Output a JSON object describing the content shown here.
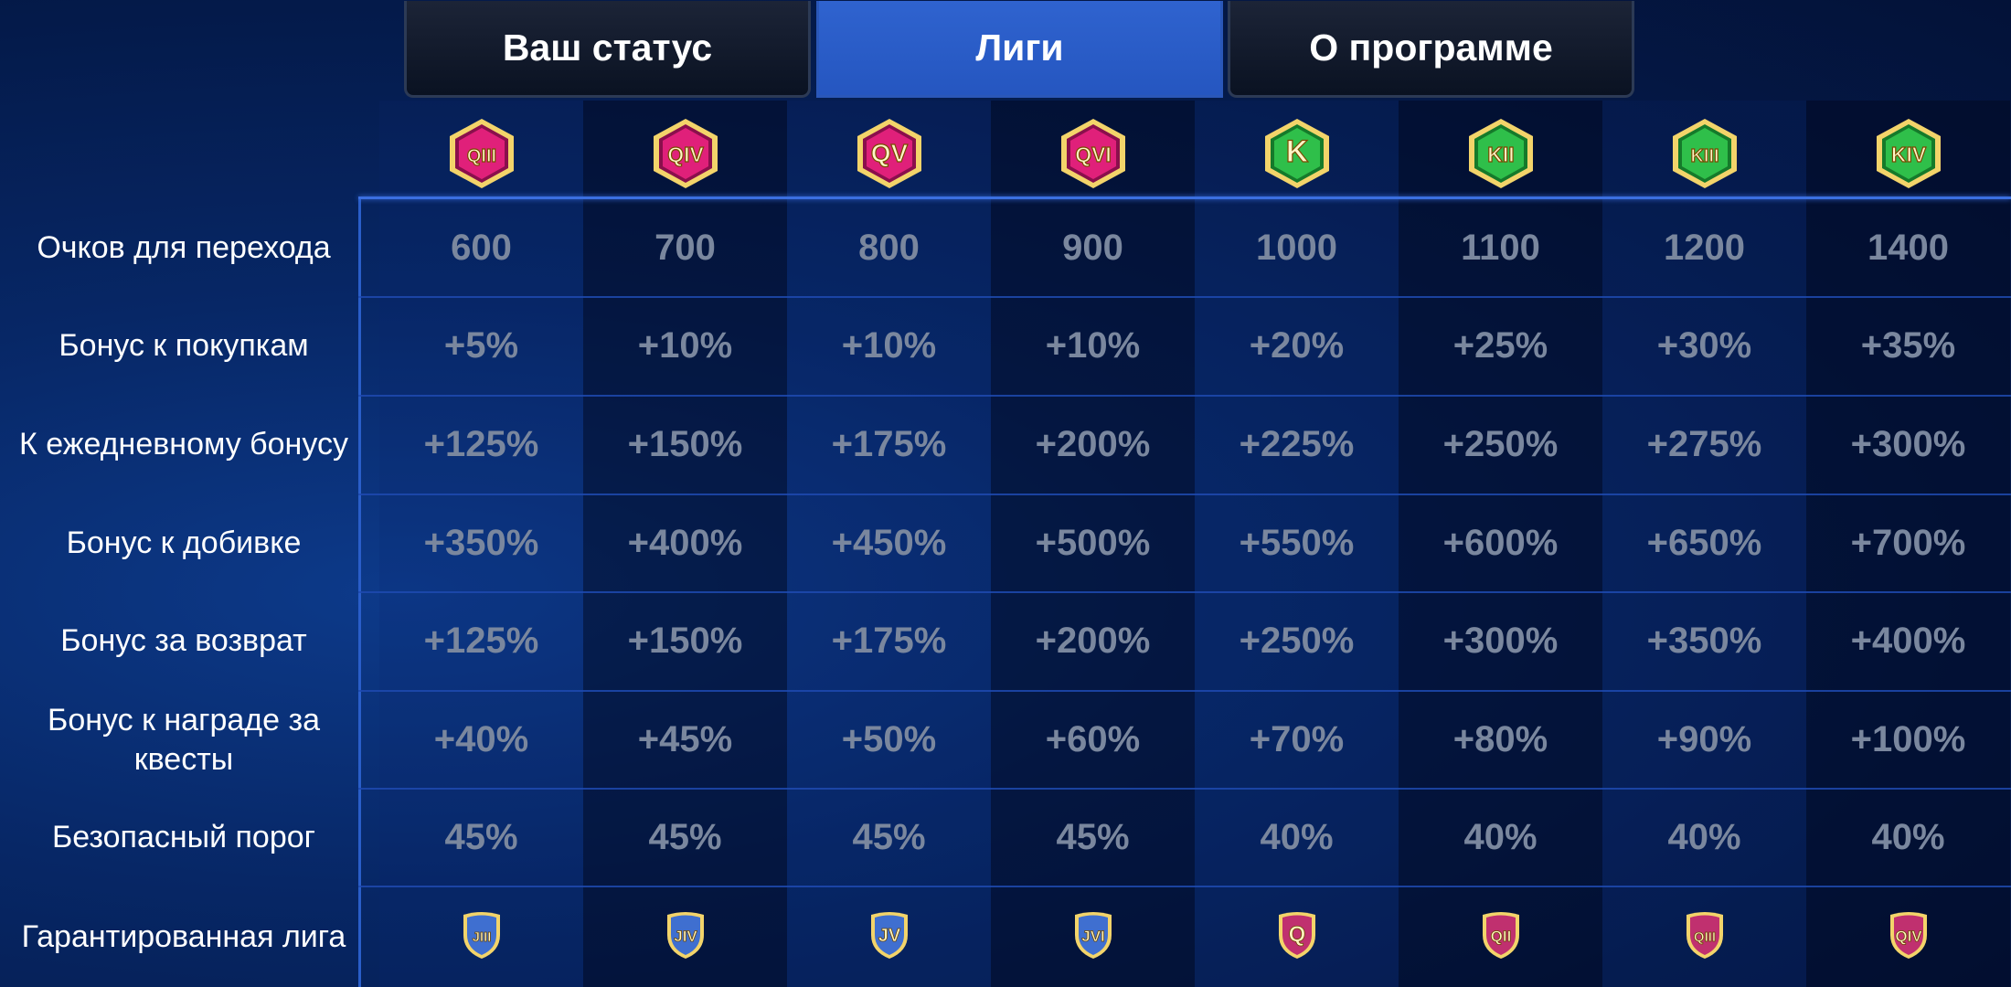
{
  "tabs": [
    {
      "label": "Ваш статус",
      "active": false
    },
    {
      "label": "Лиги",
      "active": true
    },
    {
      "label": "О программе",
      "active": false
    }
  ],
  "leagues": [
    {
      "badge_text": "QIII",
      "color": "pink"
    },
    {
      "badge_text": "QIV",
      "color": "pink"
    },
    {
      "badge_text": "QV",
      "color": "pink"
    },
    {
      "badge_text": "QVI",
      "color": "pink"
    },
    {
      "badge_text": "K",
      "color": "green"
    },
    {
      "badge_text": "KII",
      "color": "green"
    },
    {
      "badge_text": "KIII",
      "color": "green"
    },
    {
      "badge_text": "KIV",
      "color": "green"
    }
  ],
  "rows": [
    {
      "label": "Очков для перехода",
      "values": [
        "600",
        "700",
        "800",
        "900",
        "1000",
        "1100",
        "1200",
        "1400"
      ]
    },
    {
      "label": "Бонус к покупкам",
      "values": [
        "+5%",
        "+10%",
        "+10%",
        "+10%",
        "+20%",
        "+25%",
        "+30%",
        "+35%"
      ]
    },
    {
      "label": "К ежедневному бонусу",
      "values": [
        "+125%",
        "+150%",
        "+175%",
        "+200%",
        "+225%",
        "+250%",
        "+275%",
        "+300%"
      ]
    },
    {
      "label": "Бонус к добивке",
      "values": [
        "+350%",
        "+400%",
        "+450%",
        "+500%",
        "+550%",
        "+600%",
        "+650%",
        "+700%"
      ]
    },
    {
      "label": "Бонус за возврат",
      "values": [
        "+125%",
        "+150%",
        "+175%",
        "+200%",
        "+250%",
        "+300%",
        "+350%",
        "+400%"
      ]
    },
    {
      "label": "Бонус к награде за квесты",
      "values": [
        "+40%",
        "+45%",
        "+50%",
        "+60%",
        "+70%",
        "+80%",
        "+90%",
        "+100%"
      ]
    },
    {
      "label": "Безопасный порог",
      "values": [
        "45%",
        "45%",
        "45%",
        "45%",
        "40%",
        "40%",
        "40%",
        "40%"
      ]
    }
  ],
  "guaranteed": {
    "label": "Гарантированная лига",
    "badges": [
      {
        "text": "JIII",
        "color": "blue"
      },
      {
        "text": "JIV",
        "color": "blue"
      },
      {
        "text": "JV",
        "color": "blue"
      },
      {
        "text": "JVI",
        "color": "blue"
      },
      {
        "text": "Q",
        "color": "pink"
      },
      {
        "text": "QII",
        "color": "pink"
      },
      {
        "text": "QIII",
        "color": "pink"
      },
      {
        "text": "QIV",
        "color": "pink"
      }
    ]
  },
  "colors": {
    "active_tab": "#2556c0",
    "value_text": "#7a879e",
    "pink_badge": "#e0207a",
    "green_badge": "#2fbf4a",
    "blue_shield": "#3f6fd0",
    "pink_shield": "#c0306f",
    "gold_trim": "#f3d46a"
  }
}
